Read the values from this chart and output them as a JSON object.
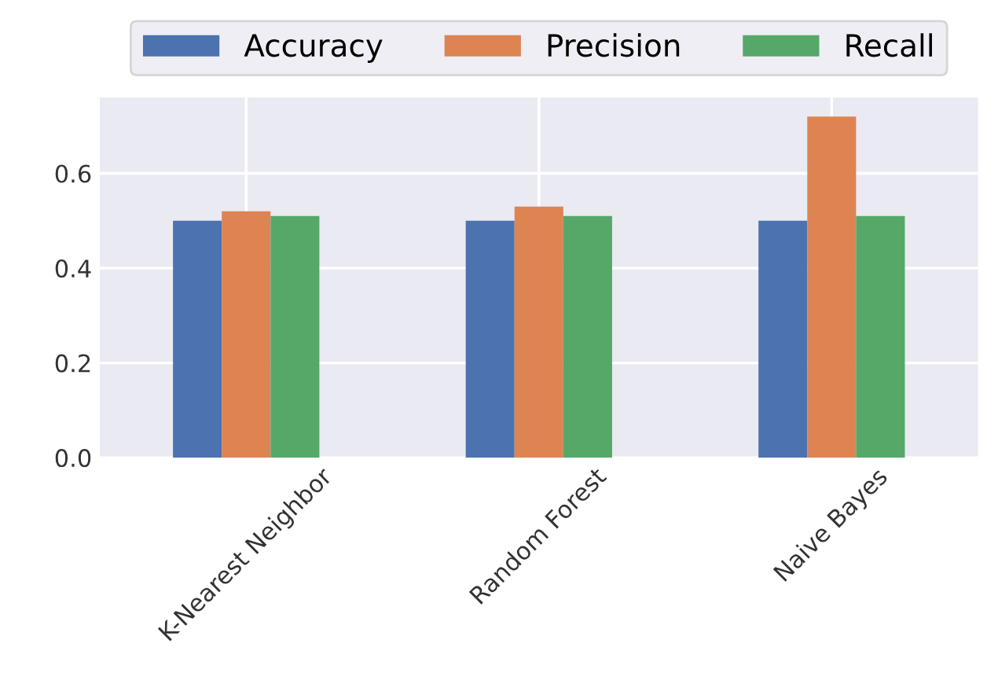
{
  "chart_data": {
    "type": "bar",
    "categories": [
      "K-Nearest Neighbor",
      "Random Forest",
      "Naive Bayes"
    ],
    "series": [
      {
        "name": "Accuracy",
        "color": "#4c72b0",
        "values": [
          0.5,
          0.5,
          0.5
        ]
      },
      {
        "name": "Precision",
        "color": "#dd8452",
        "values": [
          0.52,
          0.53,
          0.72
        ]
      },
      {
        "name": "Recall",
        "color": "#55a868",
        "values": [
          0.51,
          0.51,
          0.51
        ]
      }
    ],
    "ylim": [
      0,
      0.76
    ],
    "yticks": [
      {
        "value": 0,
        "label": "0.0"
      },
      {
        "value": 0.2,
        "label": "0.2"
      },
      {
        "value": 0.4,
        "label": "0.4"
      },
      {
        "value": 0.6,
        "label": "0.6"
      }
    ],
    "grid": true,
    "legend": "top"
  }
}
